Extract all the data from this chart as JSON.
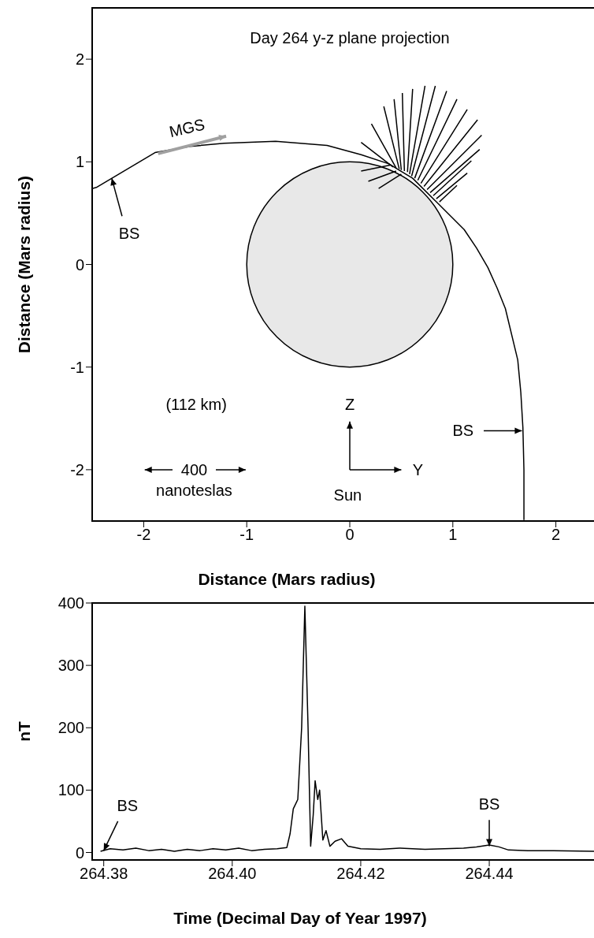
{
  "chart_data": [
    {
      "type": "line",
      "title": "Day 264 y-z plane projection",
      "xlabel": "Distance (Mars radius)",
      "ylabel": "Distance (Mars radius)",
      "xlim": [
        -2.5,
        2.37
      ],
      "ylim": [
        -2.5,
        2.5
      ],
      "xticks": [
        -2,
        -1,
        0,
        1,
        2
      ],
      "yticks": [
        -2,
        -1,
        0,
        1,
        2
      ],
      "marker": "none",
      "line_style": "solid",
      "series": [
        {
          "color": "#000000",
          "x": [
            -2.5,
            -2.46,
            -1.89,
            -1.55,
            -1.22,
            -0.72,
            -0.22,
            0.11,
            0.38,
            0.61,
            0.84,
            1.11,
            1.23,
            1.34,
            1.43,
            1.51,
            1.63,
            1.66,
            1.68,
            1.69,
            1.69
          ],
          "values": [
            0.74,
            0.75,
            1.09,
            1.15,
            1.18,
            1.2,
            1.16,
            1.07,
            0.98,
            0.84,
            0.61,
            0.34,
            0.16,
            -0.03,
            -0.23,
            -0.43,
            -0.93,
            -1.25,
            -1.59,
            -2.0,
            -2.49
          ]
        },
        {
          "color": "#000000",
          "x": [
            0.42,
            0.11,
            null,
            0.45,
            0.21,
            null,
            0.48,
            0.33,
            null,
            0.5,
            0.43,
            null,
            0.53,
            0.51,
            null,
            0.56,
            0.61,
            null,
            0.58,
            0.73,
            null,
            0.6,
            0.83,
            null,
            0.63,
            0.94,
            null,
            0.66,
            1.04,
            null,
            0.69,
            1.14,
            null,
            0.72,
            1.24,
            null,
            0.75,
            1.28,
            null,
            0.78,
            1.26,
            null,
            0.81,
            1.18,
            null,
            0.84,
            1.14,
            null,
            0.87,
            1.04,
            null,
            0.4,
            0.11,
            null,
            0.45,
            0.18,
            null,
            0.5,
            0.28
          ],
          "values": [
            0.95,
            1.19,
            null,
            0.94,
            1.37,
            null,
            0.93,
            1.54,
            null,
            0.92,
            1.61,
            null,
            0.91,
            1.67,
            null,
            0.9,
            1.71,
            null,
            0.88,
            1.74,
            null,
            0.86,
            1.74,
            null,
            0.84,
            1.69,
            null,
            0.82,
            1.61,
            null,
            0.79,
            1.51,
            null,
            0.76,
            1.41,
            null,
            0.73,
            1.26,
            null,
            0.7,
            1.12,
            null,
            0.67,
            1.01,
            null,
            0.64,
            0.89,
            null,
            0.61,
            0.77,
            null,
            0.97,
            0.91,
            null,
            0.91,
            0.81,
            null,
            0.88,
            0.74
          ]
        }
      ],
      "annotations": [
        "MGS",
        {
          "text": "BS",
          "x": -2.31,
          "y": 0.84
        },
        "(112 km)",
        "400",
        "nanoteslas",
        "Z",
        "Y",
        "Sun",
        "BS"
      ]
    },
    {
      "type": "line",
      "xlabel": "Time (Decimal Day of Year 1997)",
      "ylabel": "nT",
      "xlim": [
        264.3782,
        264.4563
      ],
      "ylim": [
        -12,
        400
      ],
      "xticks": [
        264.38,
        {
          "value": 264.4,
          "label": "264.40"
        },
        264.42,
        264.44
      ],
      "yticks": [
        0,
        100,
        200,
        300,
        400
      ],
      "marker": "none",
      "line_style": "solid",
      "series": [
        {
          "color": "#000000",
          "x": [
            264.3795,
            264.381,
            264.383,
            264.385,
            264.387,
            264.389,
            264.391,
            264.393,
            264.395,
            264.397,
            264.399,
            264.401,
            264.403,
            264.405,
            264.407,
            264.4085,
            264.409,
            264.4095,
            264.4102,
            264.4108,
            264.4113,
            264.4118,
            264.4122,
            264.4126,
            264.4129,
            264.4133,
            264.4136,
            264.4141,
            264.4146,
            264.4152,
            264.416,
            264.417,
            264.418,
            264.42,
            264.423,
            264.426,
            264.43,
            264.433,
            264.436,
            264.438,
            264.44,
            264.4415,
            264.443,
            264.446,
            264.45,
            264.4563
          ],
          "values": [
            2,
            6,
            4,
            7,
            3,
            5,
            2,
            5,
            3,
            6,
            4,
            7,
            3,
            5,
            6,
            8,
            30,
            70,
            85,
            200,
            395,
            200,
            10,
            60,
            115,
            85,
            100,
            20,
            35,
            10,
            18,
            22,
            10,
            6,
            5,
            7,
            5,
            6,
            7,
            9,
            12,
            9,
            4,
            3,
            3,
            2
          ]
        }
      ],
      "annotations": [
        {
          "text": "BS",
          "x": 264.38,
          "y": 3
        },
        {
          "text": "BS",
          "x": 264.44,
          "y": 10
        }
      ]
    }
  ]
}
